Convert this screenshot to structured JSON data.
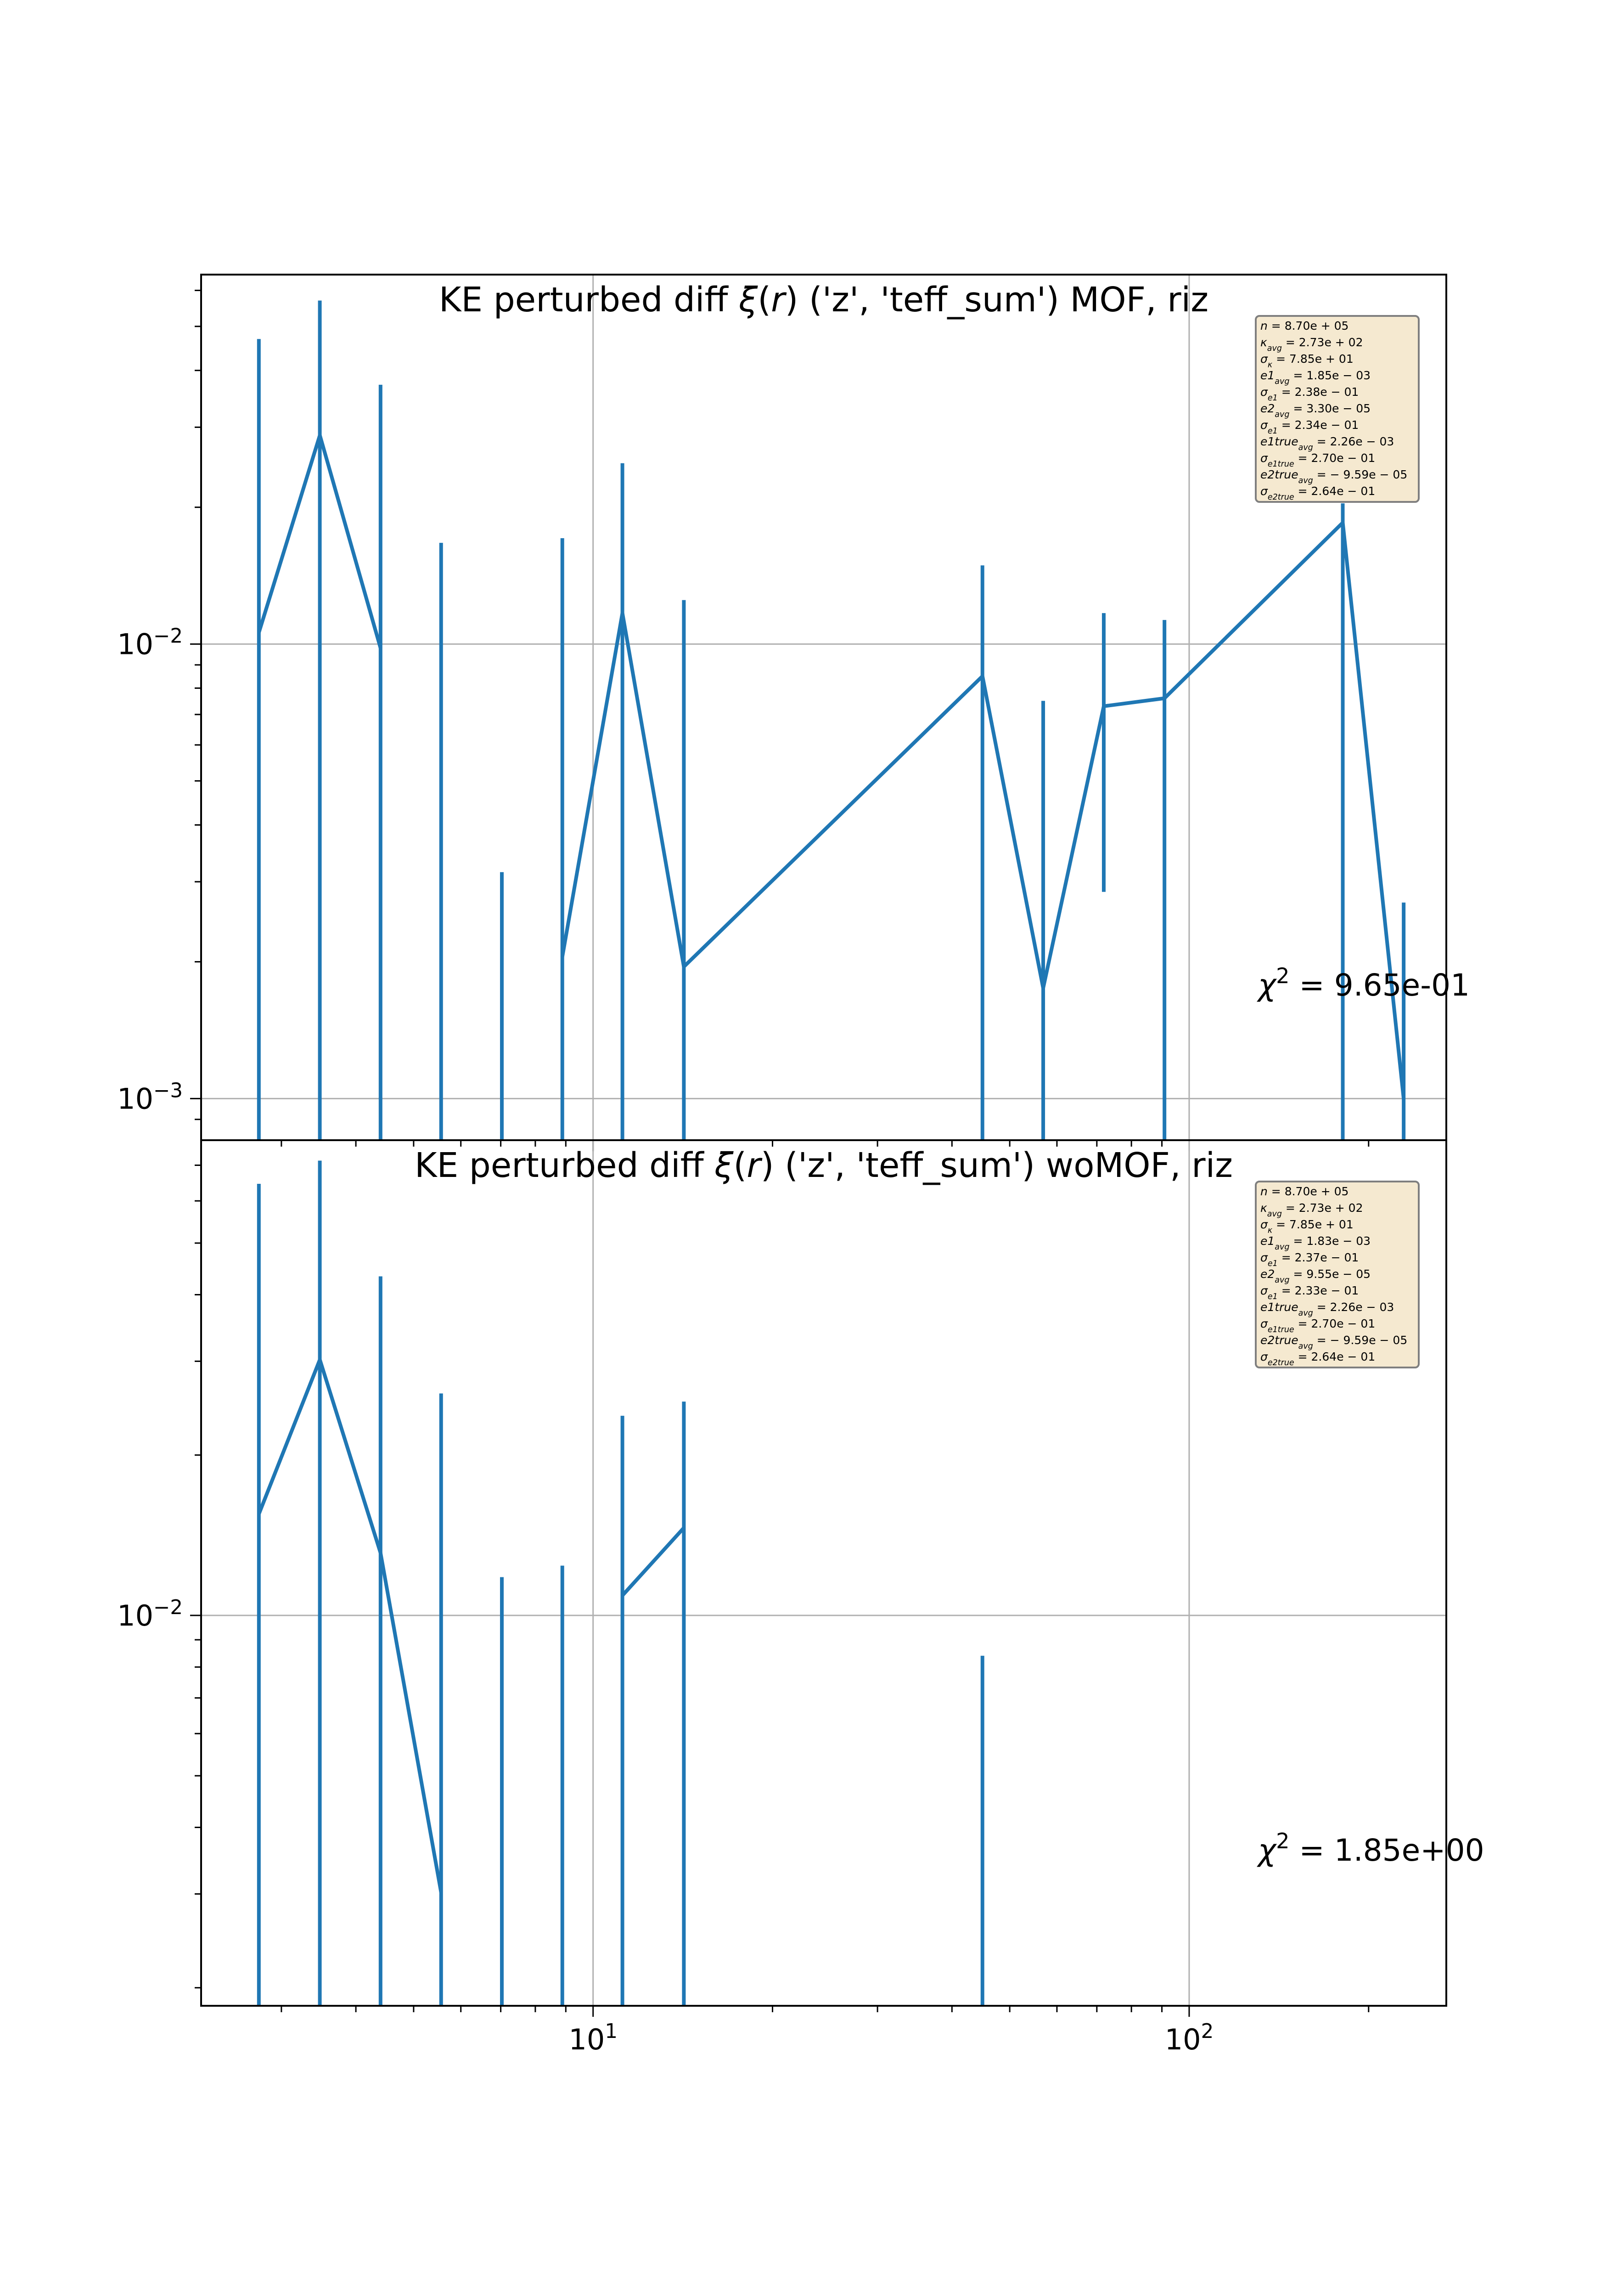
{
  "chart_data": [
    {
      "type": "line",
      "title": "KE perturbed diff ξ(r) ('z', 'teff_sum') MOF,  riz",
      "xscale": "log",
      "yscale": "log",
      "xlim": [
        2.2,
        270
      ],
      "ylim": [
        0.00081,
        0.065
      ],
      "grid": true,
      "y_tick_labels": [
        {
          "value": 0.01,
          "label": "10",
          "exp": "−2"
        },
        {
          "value": 0.001,
          "label": "10",
          "exp": "−3"
        }
      ],
      "x_tick_labels": [],
      "series": [
        {
          "x": [
            2.75,
            3.48,
            4.4,
            5.56,
            7.03,
            8.88,
            11.2,
            14.2,
            45.0,
            56.9,
            71.9,
            90.9,
            181.0,
            229.0
          ],
          "y": [
            0.0106,
            0.0288,
            0.0098,
            null,
            null,
            0.00205,
            0.0117,
            0.00195,
            0.0085,
            0.00175,
            0.0073,
            0.0076,
            0.0185,
            0.001
          ],
          "err_upper": [
            0.0469,
            0.057,
            0.0372,
            0.0167,
            0.00315,
            0.0171,
            0.025,
            0.0125,
            0.0149,
            0.0075,
            0.0117,
            0.0113,
            0.0204,
            0.0027
          ],
          "err_lower": [
            null,
            null,
            null,
            null,
            null,
            null,
            null,
            null,
            null,
            null,
            0.00285,
            null,
            null,
            null
          ]
        }
      ],
      "legend_box": {
        "placement": "top-right",
        "lines": [
          "n = 8.70e + 05",
          "κ_avg = 2.73e + 02",
          "σ_κ = 7.85e + 01",
          "e1_avg = 1.85e − 03",
          "σ_e1 = 2.38e − 01",
          "e2_avg = 3.30e − 05",
          "σ_e1 = 2.34e − 01",
          "e1true_avg = 2.26e − 03",
          "σ_e1true = 2.70e − 01",
          "e2true_avg = − 9.59e − 05",
          "σ_e2true = 2.64e − 01"
        ]
      },
      "chi2_text": "χ² = 9.65e-01"
    },
    {
      "type": "line",
      "title": "KE perturbed diff ξ(r) ('z', 'teff_sum') woMOF,  riz",
      "xscale": "log",
      "yscale": "log",
      "xlim": [
        2.2,
        270
      ],
      "ylim": [
        0.00185,
        0.078
      ],
      "grid": true,
      "y_tick_labels": [
        {
          "value": 0.01,
          "label": "10",
          "exp": "−2"
        }
      ],
      "x_tick_labels": [
        {
          "value": 10,
          "label": "10",
          "exp": "1"
        },
        {
          "value": 100,
          "label": "10",
          "exp": "2"
        }
      ],
      "series": [
        {
          "x": [
            2.75,
            3.48,
            4.4,
            5.56,
            7.03,
            8.88,
            11.2,
            14.2,
            45.0
          ],
          "y": [
            0.0155,
            0.0302,
            0.0131,
            0.00302,
            null,
            null,
            0.0109,
            0.0146,
            null
          ],
          "err_upper": [
            0.0646,
            0.0714,
            0.0433,
            0.0261,
            0.0118,
            0.0124,
            0.0237,
            0.0252,
            0.0084
          ],
          "err_lower": [
            null,
            null,
            null,
            null,
            null,
            null,
            null,
            null,
            null
          ]
        }
      ],
      "legend_box": {
        "placement": "top-right",
        "lines": [
          "n = 8.70e + 05",
          "κ_avg = 2.73e + 02",
          "σ_κ = 7.85e + 01",
          "e1_avg = 1.83e − 03",
          "σ_e1 = 2.37e − 01",
          "e2_avg = 9.55e − 05",
          "σ_e1 = 2.33e − 01",
          "e1true_avg = 2.26e − 03",
          "σ_e1true = 2.70e − 01",
          "e2true_avg = − 9.59e − 05",
          "σ_e2true = 2.64e − 01"
        ]
      },
      "chi2_text": "χ² = 1.85e+00"
    }
  ],
  "colors": {
    "series": "#1f77b4",
    "grid": "#b0b0b0",
    "axes": "#000000",
    "legend_fill": "#f5e9d0",
    "legend_edge": "#7f7f7f"
  }
}
